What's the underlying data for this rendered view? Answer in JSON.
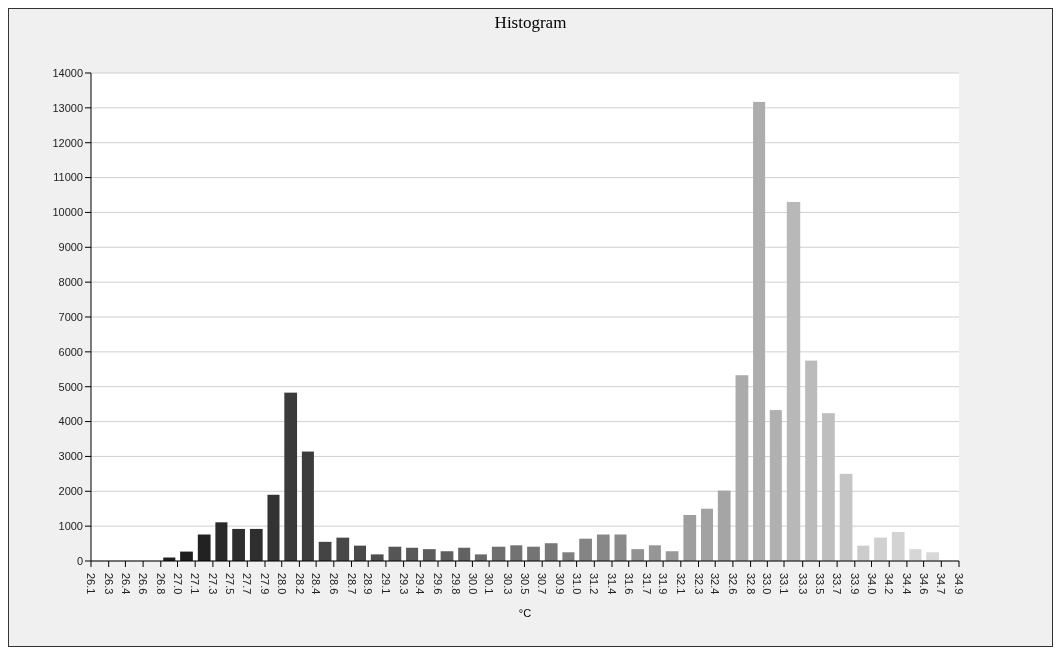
{
  "chart_data": {
    "type": "histogram",
    "title": "Histogram",
    "xlabel": "°C",
    "bins": [
      26.8,
      26.97,
      27.15,
      27.33,
      27.5,
      27.68,
      27.86,
      28.03,
      28.21,
      28.38,
      28.56,
      28.74,
      28.91,
      29.09,
      29.27,
      29.44,
      29.62,
      29.8,
      29.97,
      30.14,
      30.33,
      30.5,
      30.68,
      30.86,
      31.03,
      31.21,
      31.39,
      31.56,
      31.74,
      31.91,
      32.09,
      32.27,
      32.44,
      32.62,
      32.8,
      32.97,
      33.14,
      33.33,
      33.5,
      33.68,
      33.86,
      34.03,
      34.21,
      34.39,
      34.56,
      34.74
    ],
    "values": [
      100,
      270,
      760,
      1110,
      920,
      920,
      1900,
      4830,
      3140,
      550,
      670,
      440,
      190,
      410,
      380,
      340,
      280,
      380,
      190,
      410,
      450,
      410,
      510,
      250,
      640,
      760,
      760,
      340,
      450,
      280,
      1320,
      1500,
      2020,
      5330,
      13170,
      4330,
      10300,
      5750,
      4240,
      2500,
      440,
      670,
      830,
      340,
      250
    ],
    "colors": [
      "#1e1e1e",
      "#1e1e1e",
      "#222222",
      "#2a2a2a",
      "#2e2e2e",
      "#2e2e2e",
      "#333333",
      "#3a3a3a",
      "#3c3c3c",
      "#444444",
      "#484848",
      "#4a4a4a",
      "#4e4e4e",
      "#555555",
      "#585858",
      "#5c5c5c",
      "#5e5e5e",
      "#626262",
      "#6a6a6a",
      "#6e6e6e",
      "#727272",
      "#747474",
      "#787878",
      "#7e7e7e",
      "#848484",
      "#888888",
      "#8a8a8a",
      "#929292",
      "#969696",
      "#999999",
      "#9e9e9e",
      "#a2a2a2",
      "#a5a5a5",
      "#ababab",
      "#adadad",
      "#b0b0b0",
      "#b8b8b8",
      "#bbbbbb",
      "#bebebe",
      "#c5c5c5",
      "#cccccc",
      "#d0d0d0",
      "#d3d3d3",
      "#d6d6d6",
      "#d8d8d8"
    ],
    "xlim": [
      26.09,
      34.92
    ],
    "xticks": [
      {
        "value": 26.09,
        "label": "26.1"
      },
      {
        "value": 26.27,
        "label": "26.3"
      },
      {
        "value": 26.44,
        "label": "26.4"
      },
      {
        "value": 26.62,
        "label": "26.6"
      },
      {
        "value": 26.8,
        "label": "26.8"
      },
      {
        "value": 26.97,
        "label": "27.0"
      },
      {
        "value": 27.15,
        "label": "27.1"
      },
      {
        "value": 27.33,
        "label": "27.3"
      },
      {
        "value": 27.5,
        "label": "27.5"
      },
      {
        "value": 27.68,
        "label": "27.7"
      },
      {
        "value": 27.86,
        "label": "27.9"
      },
      {
        "value": 28.03,
        "label": "28.0"
      },
      {
        "value": 28.21,
        "label": "28.2"
      },
      {
        "value": 28.38,
        "label": "28.4"
      },
      {
        "value": 28.56,
        "label": "28.6"
      },
      {
        "value": 28.74,
        "label": "28.7"
      },
      {
        "value": 28.91,
        "label": "28.9"
      },
      {
        "value": 29.09,
        "label": "29.1"
      },
      {
        "value": 29.27,
        "label": "29.3"
      },
      {
        "value": 29.44,
        "label": "29.4"
      },
      {
        "value": 29.62,
        "label": "29.6"
      },
      {
        "value": 29.8,
        "label": "29.8"
      },
      {
        "value": 29.97,
        "label": "30.0"
      },
      {
        "value": 30.14,
        "label": "30.1"
      },
      {
        "value": 30.33,
        "label": "30.3"
      },
      {
        "value": 30.5,
        "label": "30.5"
      },
      {
        "value": 30.68,
        "label": "30.7"
      },
      {
        "value": 30.86,
        "label": "30.9"
      },
      {
        "value": 31.03,
        "label": "31.0"
      },
      {
        "value": 31.21,
        "label": "31.2"
      },
      {
        "value": 31.39,
        "label": "31.4"
      },
      {
        "value": 31.56,
        "label": "31.6"
      },
      {
        "value": 31.74,
        "label": "31.7"
      },
      {
        "value": 31.91,
        "label": "31.9"
      },
      {
        "value": 32.09,
        "label": "32.1"
      },
      {
        "value": 32.27,
        "label": "32.3"
      },
      {
        "value": 32.44,
        "label": "32.4"
      },
      {
        "value": 32.62,
        "label": "32.6"
      },
      {
        "value": 32.8,
        "label": "32.8"
      },
      {
        "value": 32.97,
        "label": "33.0"
      },
      {
        "value": 33.14,
        "label": "33.1"
      },
      {
        "value": 33.33,
        "label": "33.3"
      },
      {
        "value": 33.5,
        "label": "33.5"
      },
      {
        "value": 33.68,
        "label": "33.7"
      },
      {
        "value": 33.86,
        "label": "33.9"
      },
      {
        "value": 34.03,
        "label": "34.0"
      },
      {
        "value": 34.21,
        "label": "34.2"
      },
      {
        "value": 34.39,
        "label": "34.4"
      },
      {
        "value": 34.56,
        "label": "34.6"
      },
      {
        "value": 34.74,
        "label": "34.7"
      },
      {
        "value": 34.92,
        "label": "34.9"
      }
    ],
    "ylim": [
      0,
      14000
    ],
    "yticks": [
      0,
      1000,
      2000,
      3000,
      4000,
      5000,
      6000,
      7000,
      8000,
      9000,
      10000,
      11000,
      12000,
      13000,
      14000
    ],
    "grid": "y",
    "legend": false
  }
}
